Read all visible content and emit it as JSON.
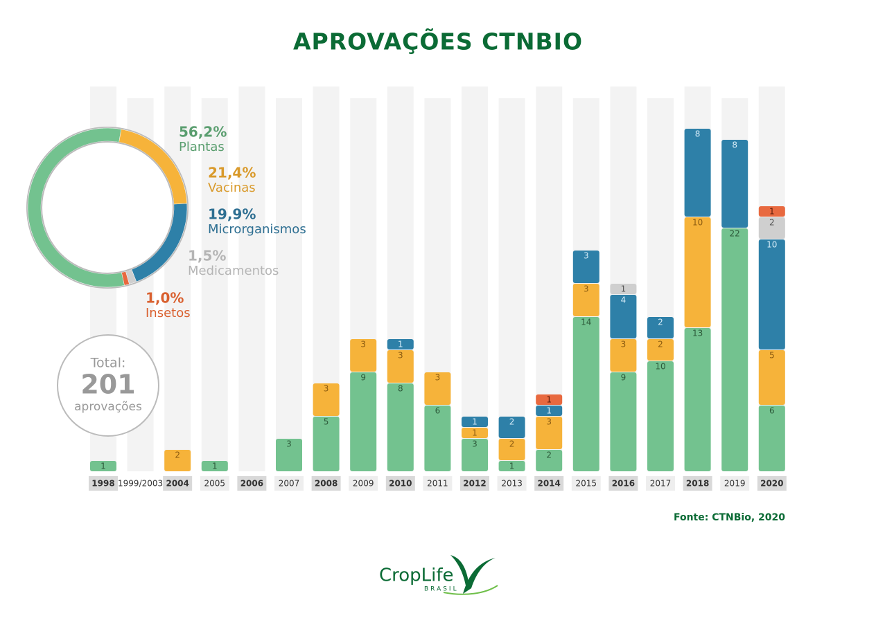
{
  "chart_data": [
    {
      "type": "bar",
      "stacked": true,
      "title": "APROVAÇÕES CTNBIO",
      "categories": [
        "1998",
        "1999/2003",
        "2004",
        "2005",
        "2006",
        "2007",
        "2008",
        "2009",
        "2010",
        "2011",
        "2012",
        "2013",
        "2014",
        "2015",
        "2016",
        "2017",
        "2018",
        "2019",
        "2020"
      ],
      "series": [
        {
          "color": "#73c28f",
          "values": [
            1,
            null,
            null,
            1,
            null,
            3,
            5,
            9,
            8,
            6,
            3,
            1,
            2,
            14,
            9,
            10,
            13,
            22,
            6
          ]
        },
        {
          "color": "#f6b33a",
          "values": [
            null,
            null,
            2,
            null,
            null,
            null,
            3,
            3,
            3,
            3,
            1,
            2,
            3,
            3,
            3,
            2,
            10,
            null,
            5
          ]
        },
        {
          "color": "#2e80a8",
          "values": [
            null,
            null,
            null,
            null,
            null,
            null,
            null,
            null,
            1,
            null,
            1,
            2,
            1,
            3,
            4,
            2,
            8,
            8,
            10
          ]
        },
        {
          "color": "#cfcfcf",
          "values": [
            null,
            null,
            null,
            null,
            null,
            null,
            null,
            null,
            null,
            null,
            null,
            null,
            null,
            null,
            1,
            null,
            null,
            null,
            2
          ]
        },
        {
          "color": "#e8693f",
          "values": [
            null,
            null,
            null,
            null,
            null,
            null,
            null,
            null,
            null,
            null,
            null,
            null,
            1,
            null,
            null,
            null,
            null,
            null,
            1
          ]
        }
      ],
      "source": "Fonte: CTNBio, 2020"
    },
    {
      "type": "pie",
      "categories": [
        "Plantas",
        "Vacinas",
        "Microrganismos",
        "Medicamentos",
        "Insetos"
      ],
      "values": [
        56.2,
        21.4,
        19.9,
        1.5,
        1.0
      ],
      "value_labels": [
        "56,2%",
        "21,4%",
        "19,9%",
        "1,5%",
        "1,0%"
      ],
      "colors": [
        "#73c28f",
        "#f6b33a",
        "#2e80a8",
        "#cfcfcf",
        "#e8693f"
      ],
      "total": {
        "label": "Total:",
        "value": 201,
        "unit": "aprovações"
      }
    }
  ],
  "logo": {
    "name": "CropLife",
    "country": "BRASIL"
  }
}
